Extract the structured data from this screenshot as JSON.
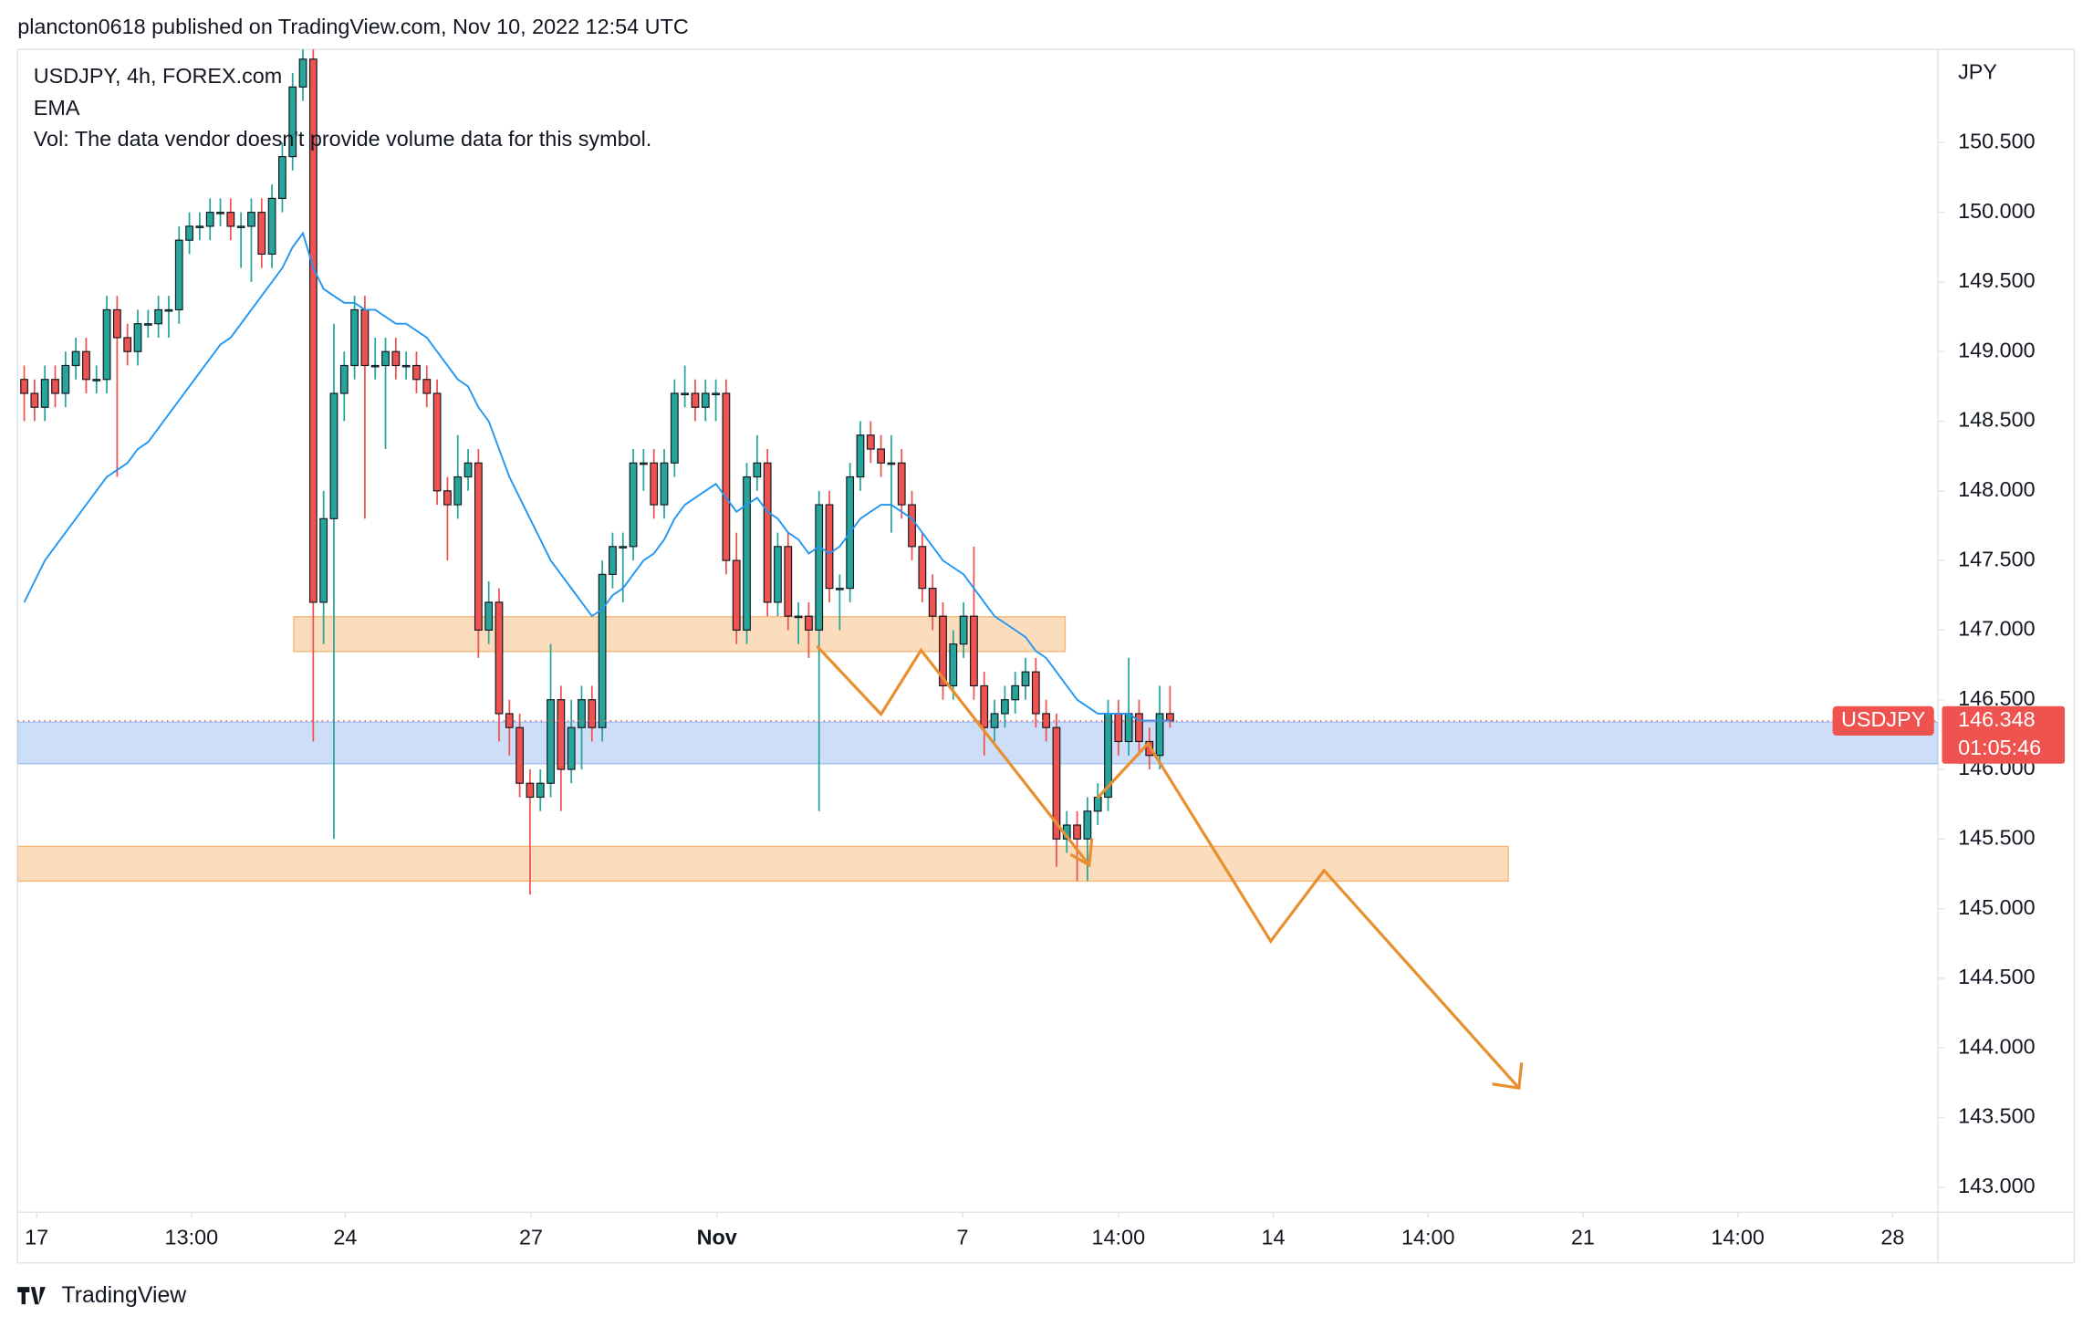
{
  "header": "plancton0618 published on TradingView.com, Nov 10, 2022 12:54 UTC",
  "footer": "TradingView",
  "chart_data": {
    "type": "candlestick",
    "legend": [
      "USDJPY, 4h, FOREX.com",
      "Vol: The data vendor doesn't provide volume data for this symbol."
    ],
    "y_unit": "JPY",
    "symbol": "USDJPY",
    "last_price": 146.348,
    "countdown": "01:05:46",
    "up_color": "#26a69a",
    "down_color": "#ef5350",
    "ohlc": [
      [
        148.8,
        148.9,
        148.5,
        148.7
      ],
      [
        148.7,
        148.8,
        148.5,
        148.6
      ],
      [
        148.6,
        148.9,
        148.5,
        148.8
      ],
      [
        148.8,
        148.9,
        148.6,
        148.7
      ],
      [
        148.7,
        149.0,
        148.6,
        148.9
      ],
      [
        148.9,
        149.1,
        148.8,
        149.0
      ],
      [
        149.0,
        149.1,
        148.7,
        148.8
      ],
      [
        148.8,
        148.9,
        148.7,
        148.8
      ],
      [
        148.8,
        149.4,
        148.7,
        149.3
      ],
      [
        149.3,
        149.4,
        148.1,
        149.1
      ],
      [
        149.1,
        149.2,
        148.9,
        149.0
      ],
      [
        149.0,
        149.3,
        148.9,
        149.2
      ],
      [
        149.2,
        149.3,
        149.1,
        149.2
      ],
      [
        149.2,
        149.4,
        149.1,
        149.3
      ],
      [
        149.3,
        149.4,
        149.1,
        149.3
      ],
      [
        149.3,
        149.9,
        149.2,
        149.8
      ],
      [
        149.8,
        150.0,
        149.7,
        149.9
      ],
      [
        149.9,
        150.0,
        149.8,
        149.9
      ],
      [
        149.9,
        150.1,
        149.8,
        150.0
      ],
      [
        150.0,
        150.1,
        149.9,
        150.0
      ],
      [
        150.0,
        150.1,
        149.8,
        149.9
      ],
      [
        149.9,
        150.0,
        149.6,
        149.9
      ],
      [
        149.9,
        150.1,
        149.5,
        150.0
      ],
      [
        150.0,
        150.1,
        149.6,
        149.7
      ],
      [
        149.7,
        150.2,
        149.6,
        150.1
      ],
      [
        150.1,
        150.5,
        150.0,
        150.4
      ],
      [
        150.4,
        151.0,
        150.3,
        150.9
      ],
      [
        150.9,
        151.3,
        150.8,
        151.1
      ],
      [
        151.1,
        151.3,
        146.2,
        147.2
      ],
      [
        147.2,
        148.0,
        146.9,
        147.8
      ],
      [
        147.8,
        149.2,
        145.5,
        148.7
      ],
      [
        148.7,
        149.0,
        148.5,
        148.9
      ],
      [
        148.9,
        149.4,
        148.8,
        149.3
      ],
      [
        149.3,
        149.4,
        147.8,
        148.9
      ],
      [
        148.9,
        149.1,
        148.8,
        148.9
      ],
      [
        148.9,
        149.1,
        148.3,
        149.0
      ],
      [
        149.0,
        149.1,
        148.8,
        148.9
      ],
      [
        148.9,
        149.0,
        148.8,
        148.9
      ],
      [
        148.9,
        149.0,
        148.7,
        148.8
      ],
      [
        148.8,
        148.9,
        148.6,
        148.7
      ],
      [
        148.7,
        148.8,
        147.9,
        148.0
      ],
      [
        148.0,
        148.1,
        147.5,
        147.9
      ],
      [
        147.9,
        148.4,
        147.8,
        148.1
      ],
      [
        148.1,
        148.3,
        148.0,
        148.2
      ],
      [
        148.2,
        148.3,
        146.8,
        147.0
      ],
      [
        147.0,
        147.35,
        146.9,
        147.2
      ],
      [
        147.2,
        147.3,
        146.2,
        146.4
      ],
      [
        146.4,
        146.5,
        146.1,
        146.3
      ],
      [
        146.3,
        146.4,
        145.8,
        145.9
      ],
      [
        145.9,
        146.0,
        145.1,
        145.8
      ],
      [
        145.8,
        146.0,
        145.7,
        145.9
      ],
      [
        145.9,
        146.9,
        145.8,
        146.5
      ],
      [
        146.5,
        146.6,
        145.7,
        146.0
      ],
      [
        146.0,
        146.5,
        145.9,
        146.3
      ],
      [
        146.3,
        146.6,
        146.0,
        146.5
      ],
      [
        146.5,
        146.6,
        146.2,
        146.3
      ],
      [
        146.3,
        147.5,
        146.2,
        147.4
      ],
      [
        147.4,
        147.7,
        147.3,
        147.6
      ],
      [
        147.6,
        147.7,
        147.2,
        147.6
      ],
      [
        147.6,
        148.3,
        147.5,
        148.2
      ],
      [
        148.2,
        148.3,
        148.0,
        148.2
      ],
      [
        148.2,
        148.3,
        147.8,
        147.9
      ],
      [
        147.9,
        148.3,
        147.8,
        148.2
      ],
      [
        148.2,
        148.8,
        148.1,
        148.7
      ],
      [
        148.7,
        148.9,
        148.6,
        148.7
      ],
      [
        148.7,
        148.8,
        148.5,
        148.6
      ],
      [
        148.6,
        148.8,
        148.5,
        148.7
      ],
      [
        148.7,
        148.8,
        148.5,
        148.7
      ],
      [
        148.7,
        148.8,
        147.4,
        147.5
      ],
      [
        147.5,
        147.7,
        146.9,
        147.0
      ],
      [
        147.0,
        148.2,
        146.9,
        148.1
      ],
      [
        148.1,
        148.4,
        148.0,
        148.2
      ],
      [
        148.2,
        148.3,
        147.1,
        147.2
      ],
      [
        147.2,
        147.7,
        147.1,
        147.6
      ],
      [
        147.6,
        147.7,
        147.0,
        147.1
      ],
      [
        147.1,
        147.2,
        146.9,
        147.1
      ],
      [
        147.1,
        147.2,
        146.8,
        147.0
      ],
      [
        147.0,
        148.0,
        145.7,
        147.9
      ],
      [
        147.9,
        148.0,
        147.2,
        147.3
      ],
      [
        147.3,
        147.4,
        147.0,
        147.3
      ],
      [
        147.3,
        148.2,
        147.2,
        148.1
      ],
      [
        148.1,
        148.5,
        148.0,
        148.4
      ],
      [
        148.4,
        148.5,
        148.2,
        148.3
      ],
      [
        148.3,
        148.4,
        148.1,
        148.2
      ],
      [
        148.2,
        148.4,
        147.7,
        148.2
      ],
      [
        148.2,
        148.3,
        147.8,
        147.9
      ],
      [
        147.9,
        148.0,
        147.5,
        147.6
      ],
      [
        147.6,
        147.7,
        147.2,
        147.3
      ],
      [
        147.3,
        147.4,
        147.0,
        147.1
      ],
      [
        147.1,
        147.2,
        146.5,
        146.6
      ],
      [
        146.6,
        147.0,
        146.5,
        146.9
      ],
      [
        146.9,
        147.2,
        146.8,
        147.1
      ],
      [
        147.1,
        147.6,
        146.5,
        146.6
      ],
      [
        146.6,
        146.7,
        146.1,
        146.3
      ],
      [
        146.3,
        146.5,
        146.2,
        146.4
      ],
      [
        146.4,
        146.6,
        146.3,
        146.5
      ],
      [
        146.5,
        146.7,
        146.4,
        146.6
      ],
      [
        146.6,
        146.8,
        146.5,
        146.7
      ],
      [
        146.7,
        146.8,
        146.3,
        146.4
      ],
      [
        146.4,
        146.5,
        146.2,
        146.3
      ],
      [
        146.3,
        146.4,
        145.3,
        145.5
      ],
      [
        145.5,
        145.7,
        145.4,
        145.6
      ],
      [
        145.6,
        145.7,
        145.2,
        145.5
      ],
      [
        145.5,
        145.8,
        145.2,
        145.7
      ],
      [
        145.7,
        145.9,
        145.6,
        145.8
      ],
      [
        145.8,
        146.5,
        145.7,
        146.4
      ],
      [
        146.4,
        146.5,
        146.1,
        146.2
      ],
      [
        146.2,
        146.8,
        146.1,
        146.4
      ],
      [
        146.4,
        146.5,
        146.1,
        146.2
      ],
      [
        146.2,
        146.3,
        146.0,
        146.1
      ],
      [
        146.1,
        146.6,
        146.0,
        146.4
      ],
      [
        146.4,
        146.6,
        146.3,
        146.348
      ]
    ],
    "series": [
      {
        "name": "EMA",
        "color": "#2196f3",
        "values": [
          147.2,
          147.35,
          147.5,
          147.6,
          147.7,
          147.8,
          147.9,
          148.0,
          148.1,
          148.15,
          148.2,
          148.3,
          148.35,
          148.45,
          148.55,
          148.65,
          148.75,
          148.85,
          148.95,
          149.05,
          149.1,
          149.2,
          149.3,
          149.4,
          149.5,
          149.6,
          149.75,
          149.85,
          149.6,
          149.45,
          149.4,
          149.35,
          149.35,
          149.3,
          149.3,
          149.25,
          149.2,
          149.2,
          149.15,
          149.1,
          149.0,
          148.9,
          148.8,
          148.75,
          148.6,
          148.5,
          148.3,
          148.1,
          147.95,
          147.8,
          147.65,
          147.5,
          147.4,
          147.3,
          147.2,
          147.1,
          147.15,
          147.25,
          147.3,
          147.4,
          147.5,
          147.55,
          147.65,
          147.8,
          147.9,
          147.95,
          148.0,
          148.05,
          147.95,
          147.85,
          147.9,
          147.95,
          147.85,
          147.8,
          147.7,
          147.65,
          147.55,
          147.6,
          147.55,
          147.6,
          147.7,
          147.8,
          147.85,
          147.9,
          147.9,
          147.85,
          147.8,
          147.7,
          147.6,
          147.5,
          147.45,
          147.4,
          147.3,
          147.2,
          147.1,
          147.05,
          147.0,
          146.95,
          146.85,
          146.8,
          146.7,
          146.6,
          146.5,
          146.45,
          146.4,
          146.4,
          146.4,
          146.4,
          146.35,
          146.35,
          146.35,
          146.35
        ]
      }
    ],
    "xlim": [
      -0.65,
      185.4
    ],
    "xticks": [
      {
        "value": 1.2,
        "label": "17"
      },
      {
        "value": 16.2,
        "label": "13:00"
      },
      {
        "value": 31.1,
        "label": "24"
      },
      {
        "value": 49.1,
        "label": "27"
      },
      {
        "value": 67.1,
        "label": "Nov"
      },
      {
        "value": 90.9,
        "label": "7"
      },
      {
        "value": 106,
        "label": "14:00"
      },
      {
        "value": 121,
        "label": "14"
      },
      {
        "value": 136,
        "label": "14:00"
      },
      {
        "value": 151,
        "label": "21"
      },
      {
        "value": 166,
        "label": "14:00"
      },
      {
        "value": 181,
        "label": "28"
      }
    ],
    "ylim": [
      142.82,
      151.17
    ],
    "yticks": [
      {
        "value": 143,
        "label": "143.000"
      },
      {
        "value": 143.5,
        "label": "143.500"
      },
      {
        "value": 144,
        "label": "144.000"
      },
      {
        "value": 144.5,
        "label": "144.500"
      },
      {
        "value": 145,
        "label": "145.000"
      },
      {
        "value": 145.5,
        "label": "145.500"
      },
      {
        "value": 146,
        "label": "146.000"
      },
      {
        "value": 146.5,
        "label": "146.500"
      },
      {
        "value": 147,
        "label": "147.000"
      },
      {
        "value": 147.5,
        "label": "147.500"
      },
      {
        "value": 148,
        "label": "148.000"
      },
      {
        "value": 148.5,
        "label": "148.500"
      },
      {
        "value": 149,
        "label": "149.000"
      },
      {
        "value": 149.5,
        "label": "149.500"
      },
      {
        "value": 150,
        "label": "150.000"
      },
      {
        "value": 150.5,
        "label": "150.500"
      }
    ]
  }
}
